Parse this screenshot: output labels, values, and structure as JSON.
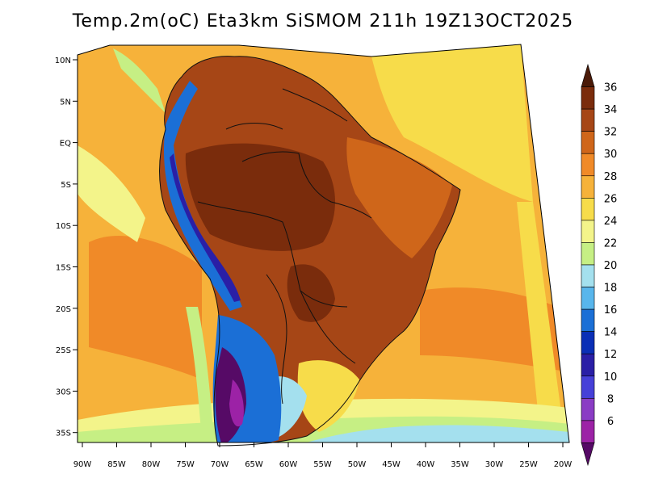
{
  "title": "Temp.2m(oC) Eta3km SiSMOM 211h 19Z13OCT2025",
  "lat_labels": [
    "10N",
    "5N",
    "EQ",
    "5S",
    "10S",
    "15S",
    "20S",
    "25S",
    "30S",
    "35S"
  ],
  "lon_labels": [
    "90W",
    "85W",
    "80W",
    "75W",
    "70W",
    "65W",
    "60W",
    "55W",
    "50W",
    "45W",
    "40W",
    "35W",
    "30W",
    "25W",
    "20W"
  ],
  "colorbar": {
    "labels": [
      "36",
      "34",
      "32",
      "30",
      "28",
      "26",
      "24",
      "22",
      "20",
      "18",
      "16",
      "14",
      "12",
      "10",
      "8",
      "6"
    ],
    "colors": [
      "#4a1a08",
      "#7a2c0c",
      "#a64616",
      "#cf661a",
      "#f08a28",
      "#f6b23a",
      "#f7dc4a",
      "#f3f48a",
      "#c6ef84",
      "#a4e0ee",
      "#58b6ec",
      "#1b6fd6",
      "#0a2fb6",
      "#2a1fa6",
      "#4640d8",
      "#8a3cc4",
      "#9c22a6",
      "#560a66"
    ]
  },
  "map_colors": {
    "ocean_warm": "#f6b23a",
    "ocean_hot": "#f08a28",
    "ocean_mild": "#f7dc4a",
    "ocean_cool": "#f3f48a",
    "ocean_cooler": "#c6ef84",
    "ocean_cold": "#a4e0ee",
    "land_hot": "#a64616",
    "land_very_hot": "#7a2c0c",
    "land_warm": "#cf661a",
    "andes_cold": "#1b6fd6",
    "andes_colder": "#2a1fa6",
    "patagonia": "#560a66",
    "patagonia_2": "#9c22a6"
  }
}
